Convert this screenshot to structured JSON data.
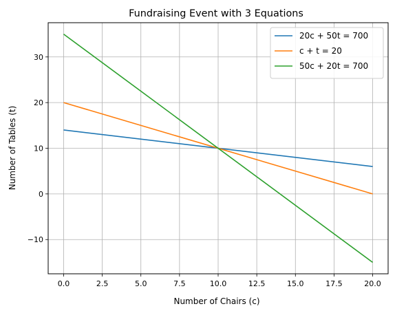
{
  "chart_data": {
    "type": "line",
    "title": "Fundraising Event with 3 Equations",
    "xlabel": "Number of Chairs (c)",
    "ylabel": "Number of Tables (t)",
    "xlim": [
      -1,
      21
    ],
    "ylim": [
      -17.5,
      37.5
    ],
    "xticks": [
      0.0,
      2.5,
      5.0,
      7.5,
      10.0,
      12.5,
      15.0,
      17.5,
      20.0
    ],
    "xtick_labels": [
      "0.0",
      "2.5",
      "5.0",
      "7.5",
      "10.0",
      "12.5",
      "15.0",
      "17.5",
      "20.0"
    ],
    "yticks": [
      -10,
      0,
      10,
      20,
      30
    ],
    "ytick_labels": [
      "−10",
      "0",
      "10",
      "20",
      "30"
    ],
    "grid": true,
    "legend_position": "upper-right",
    "series": [
      {
        "name": "20c + 50t = 700",
        "color": "#1f77b4",
        "x": [
          0,
          20
        ],
        "y": [
          14,
          6
        ]
      },
      {
        "name": "c + t = 20",
        "color": "#ff7f0e",
        "x": [
          0,
          20
        ],
        "y": [
          20,
          0
        ]
      },
      {
        "name": "50c + 20t = 700",
        "color": "#2ca02c",
        "x": [
          0,
          20
        ],
        "y": [
          35,
          -15
        ]
      }
    ]
  }
}
